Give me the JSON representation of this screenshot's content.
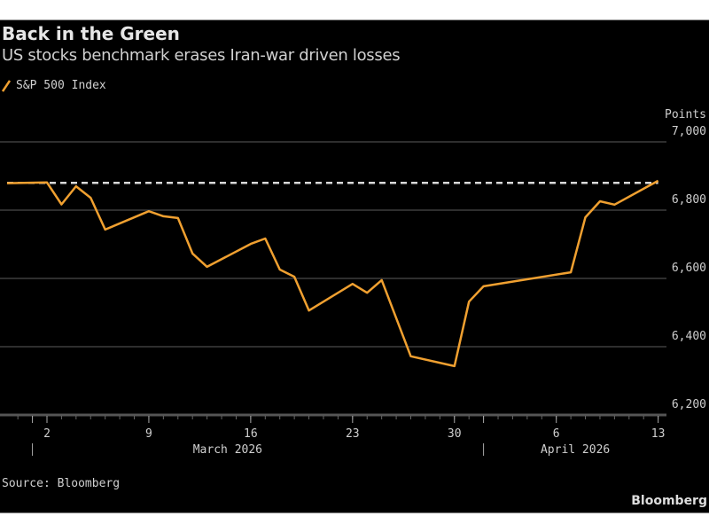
{
  "header": {
    "title": "Back in the Green",
    "subtitle": "US stocks benchmark erases Iran-war driven losses"
  },
  "footer": {
    "source": "Source: Bloomberg",
    "brand": "Bloomberg"
  },
  "colors": {
    "background": "#000000",
    "series": "#f0a030",
    "reference": "#d8d8d8",
    "grid": "#333333"
  },
  "chart_data": {
    "type": "line",
    "title": "Back in the Green",
    "subtitle": "US stocks benchmark erases Iran-war driven losses",
    "ylabel": "Points",
    "ylim": [
      6200,
      7000
    ],
    "yticks": [
      6200,
      6400,
      6600,
      6800,
      7000
    ],
    "ytick_labels": [
      "6,200",
      "6,400",
      "6,600",
      "6,800",
      "7,000"
    ],
    "y_axis_side": "right",
    "grid": true,
    "legend": "top-left",
    "xticks": [
      {
        "date": "2026-03-02",
        "label": "2"
      },
      {
        "date": "2026-03-09",
        "label": "9"
      },
      {
        "date": "2026-03-16",
        "label": "16"
      },
      {
        "date": "2026-03-23",
        "label": "23"
      },
      {
        "date": "2026-03-30",
        "label": "30"
      },
      {
        "date": "2026-04-06",
        "label": "6"
      },
      {
        "date": "2026-04-13",
        "label": "13"
      }
    ],
    "months": [
      {
        "date": "2026-03-01",
        "label": "March 2026"
      },
      {
        "date": "2026-04-01",
        "label": "April 2026"
      }
    ],
    "reference_line": {
      "value": 6880,
      "style": "dashed"
    },
    "series": [
      {
        "name": "S&P 500 Index",
        "x": [
          "2026-02-27",
          "2026-03-02",
          "2026-03-03",
          "2026-03-04",
          "2026-03-05",
          "2026-03-06",
          "2026-03-09",
          "2026-03-10",
          "2026-03-11",
          "2026-03-12",
          "2026-03-13",
          "2026-03-16",
          "2026-03-17",
          "2026-03-18",
          "2026-03-19",
          "2026-03-20",
          "2026-03-23",
          "2026-03-24",
          "2026-03-25",
          "2026-03-27",
          "2026-03-30",
          "2026-03-31",
          "2026-04-01",
          "2026-04-07",
          "2026-04-08",
          "2026-04-09",
          "2026-04-10",
          "2026-04-13"
        ],
        "values": [
          6879,
          6881,
          6817,
          6870,
          6836,
          6743,
          6797,
          6782,
          6777,
          6673,
          6634,
          6701,
          6717,
          6626,
          6605,
          6506,
          6584,
          6558,
          6595,
          6372,
          6343,
          6532,
          6577,
          6618,
          6779,
          6826,
          6816,
          6886
        ]
      }
    ]
  }
}
